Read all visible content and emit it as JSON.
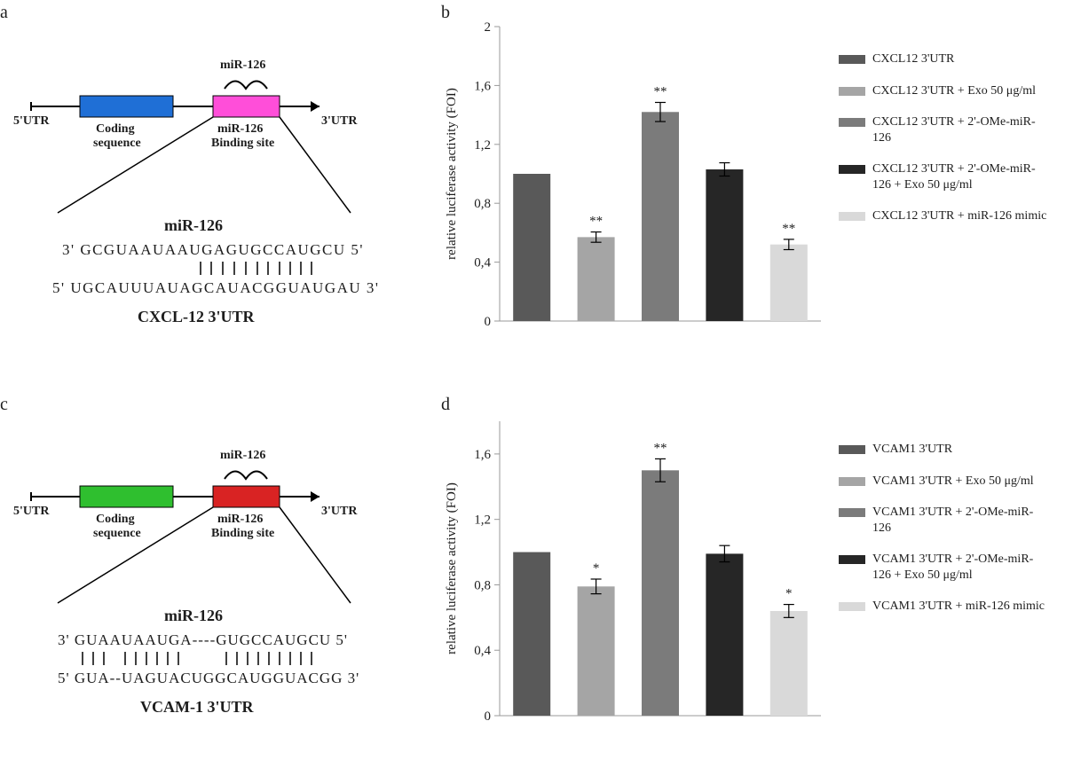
{
  "panels": {
    "a": {
      "label": "a",
      "diagram": {
        "utr5": "5'UTR",
        "utr3": "3'UTR",
        "coding_label_1": "Coding",
        "coding_label_2": "sequence",
        "coding_color": "#1f6fd6",
        "binding_label_1": "miR-126",
        "binding_label_2": "Binding site",
        "binding_color": "#ff4ed9",
        "mir_top": "miR-126",
        "seq_title": "miR-126",
        "seq_top": "3'  GCGUAAUAAUGAGUGCCAUGCU 5'",
        "seq_bottom": "5'  UGCAUUUAUAGCAUACGGUAUGAU  3'",
        "target_title": "CXCL-12 3'UTR"
      }
    },
    "b": {
      "label": "b",
      "chart": {
        "type": "bar",
        "ylim": [
          0,
          2
        ],
        "yticks": [
          0,
          0.4,
          0.8,
          1.2,
          1.6,
          2
        ],
        "ytick_labels": [
          "0",
          "0,4",
          "0,8",
          "1,2",
          "1,6",
          "2"
        ],
        "ylabel": "relative luciferase activity (FOI)",
        "background": "#ffffff",
        "bars": [
          {
            "value": 1.0,
            "err": 0.0,
            "sig": "",
            "color": "#595959"
          },
          {
            "value": 0.57,
            "err": 0.035,
            "sig": "**",
            "color": "#a5a5a5"
          },
          {
            "value": 1.42,
            "err": 0.065,
            "sig": "**",
            "color": "#7b7b7b"
          },
          {
            "value": 1.03,
            "err": 0.045,
            "sig": "",
            "color": "#262626"
          },
          {
            "value": 0.52,
            "err": 0.035,
            "sig": "**",
            "color": "#d9d9d9"
          }
        ]
      },
      "legend": [
        {
          "text": "CXCL12 3'UTR",
          "color": "#595959"
        },
        {
          "text": "CXCL12 3'UTR + Exo 50 μg/ml",
          "color": "#a5a5a5"
        },
        {
          "text": "CXCL12 3'UTR + 2'-OMe-miR-126",
          "color": "#7b7b7b"
        },
        {
          "text": "CXCL12 3'UTR + 2'-OMe-miR-126 + Exo 50 μg/ml",
          "color": "#262626"
        },
        {
          "text": "CXCL12 3'UTR + miR-126 mimic",
          "color": "#d9d9d9"
        }
      ]
    },
    "c": {
      "label": "c",
      "diagram": {
        "utr5": "5'UTR",
        "utr3": "3'UTR",
        "coding_label_1": "Coding",
        "coding_label_2": "sequence",
        "coding_color": "#2fbf2f",
        "binding_label_1": "miR-126",
        "binding_label_2": "Binding site",
        "binding_color": "#d92323",
        "mir_top": "miR-126",
        "seq_title": "miR-126",
        "seq_top": "3' GUAAUAAUGA----GUGCCAUGCU 5'",
        "seq_bottom": "5' GUA--UAGUACUGGCAUGGUACGG 3'",
        "target_title": "VCAM-1 3'UTR"
      }
    },
    "d": {
      "label": "d",
      "chart": {
        "type": "bar",
        "ylim": [
          0,
          1.8
        ],
        "yticks": [
          0,
          0.4,
          0.8,
          1.2,
          1.6
        ],
        "ytick_labels": [
          "0",
          "0,4",
          "0,8",
          "1,2",
          "1,6"
        ],
        "ylabel": "relative luciferase activity (FOI)",
        "background": "#ffffff",
        "bars": [
          {
            "value": 1.0,
            "err": 0.0,
            "sig": "",
            "color": "#595959"
          },
          {
            "value": 0.79,
            "err": 0.045,
            "sig": "*",
            "color": "#a5a5a5"
          },
          {
            "value": 1.5,
            "err": 0.07,
            "sig": "**",
            "color": "#7b7b7b"
          },
          {
            "value": 0.99,
            "err": 0.05,
            "sig": "",
            "color": "#262626"
          },
          {
            "value": 0.64,
            "err": 0.04,
            "sig": "*",
            "color": "#d9d9d9"
          }
        ]
      },
      "legend": [
        {
          "text": "VCAM1 3'UTR",
          "color": "#595959"
        },
        {
          "text": "VCAM1 3'UTR + Exo 50 μg/ml",
          "color": "#a5a5a5"
        },
        {
          "text": "VCAM1 3'UTR + 2'-OMe-miR-126",
          "color": "#7b7b7b"
        },
        {
          "text": "VCAM1 3'UTR + 2'-OMe-miR-126 + Exo 50 μg/ml",
          "color": "#262626"
        },
        {
          "text": "VCAM1 3'UTR + miR-126 mimic",
          "color": "#d9d9d9"
        }
      ]
    }
  }
}
